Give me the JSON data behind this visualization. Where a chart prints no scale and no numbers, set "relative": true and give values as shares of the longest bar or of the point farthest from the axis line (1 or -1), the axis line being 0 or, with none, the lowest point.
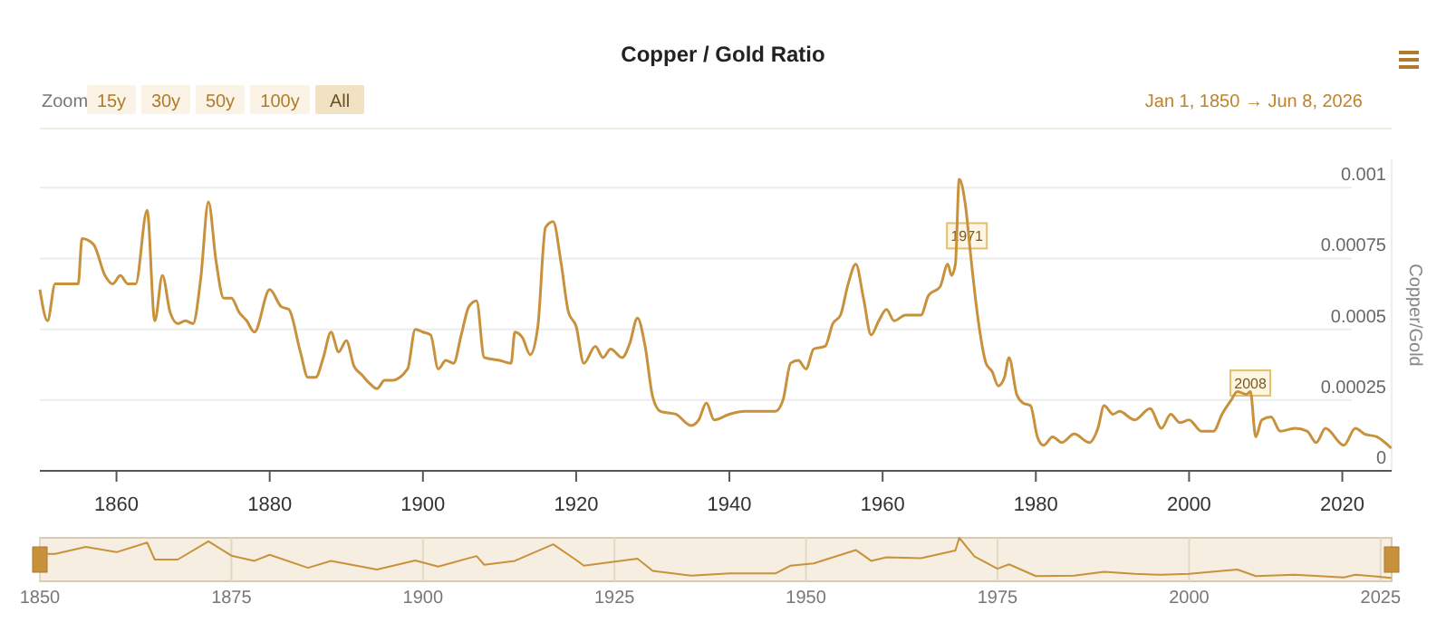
{
  "chart_data": [
    {
      "type": "line",
      "title": "Copper / Gold Ratio",
      "ylabel": "Copper/Gold",
      "color": "#c8913c",
      "grid": "y",
      "xlim": [
        1850,
        2026.44
      ],
      "xticks": [
        1860,
        1880,
        1900,
        1920,
        1940,
        1960,
        1980,
        2000,
        2020
      ],
      "ylim": [
        0,
        0.0011
      ],
      "yticks": [
        0,
        0.00025,
        0.0005,
        0.00075,
        0.001
      ],
      "x": [
        1850,
        1851,
        1852,
        1853.5,
        1855,
        1855.5,
        1857,
        1858.5,
        1859.5,
        1860.5,
        1861.5,
        1862.5,
        1864,
        1865,
        1866,
        1867,
        1868,
        1869,
        1870,
        1871,
        1872,
        1873,
        1874,
        1875,
        1876,
        1877,
        1878,
        1880,
        1881.5,
        1882.5,
        1884,
        1885,
        1886,
        1887,
        1888,
        1889,
        1890,
        1891,
        1892,
        1893,
        1894,
        1895,
        1896,
        1898,
        1899,
        1900,
        1901,
        1902,
        1903,
        1904,
        1905,
        1906,
        1907,
        1908,
        1910,
        1911.5,
        1912,
        1913,
        1914,
        1915,
        1916,
        1917,
        1918,
        1919,
        1920,
        1921,
        1922.5,
        1923.5,
        1924.5,
        1926,
        1927,
        1928,
        1929,
        1930,
        1931,
        1933,
        1935,
        1936,
        1937,
        1938,
        1940,
        1942,
        1946,
        1947,
        1948,
        1949,
        1950,
        1951,
        1952.5,
        1953.5,
        1954.5,
        1955.5,
        1956.5,
        1957.5,
        1958.5,
        1959.5,
        1960.5,
        1961.5,
        1963,
        1965,
        1966,
        1967.5,
        1968.5,
        1969,
        1969.5,
        1970,
        1970.8,
        1971.5,
        1972.2,
        1972.7,
        1973.5,
        1974.3,
        1975.1,
        1975.9,
        1976.5,
        1977.5,
        1978.3,
        1979.3,
        1980.2,
        1981,
        1982.2,
        1983.4,
        1985,
        1987,
        1988.1,
        1988.9,
        1990.1,
        1990.9,
        1992.9,
        1994.9,
        1996.4,
        1997.6,
        1998.8,
        2000,
        2001.6,
        2003.2,
        2004.3,
        2005.5,
        2006.3,
        2007.5,
        2008,
        2008.7,
        2009.5,
        2010.7,
        2011.9,
        2013.8,
        2015.4,
        2016.6,
        2017.8,
        2020.2,
        2021.7,
        2022.9,
        2024.5,
        2026.4
      ],
      "values": [
        0.00064,
        0.00053,
        0.00066,
        0.00066,
        0.00066,
        0.00082,
        0.0008,
        0.00069,
        0.00066,
        0.00069,
        0.00066,
        0.00066,
        0.00092,
        0.00053,
        0.00069,
        0.00056,
        0.00052,
        0.00053,
        0.00052,
        0.00068,
        0.00095,
        0.00074,
        0.00061,
        0.00061,
        0.00056,
        0.00053,
        0.00049,
        0.00064,
        0.00058,
        0.00057,
        0.00042,
        0.00033,
        0.00033,
        0.0004,
        0.00049,
        0.00042,
        0.00046,
        0.00037,
        0.00034,
        0.00031,
        0.00029,
        0.00032,
        0.00032,
        0.00036,
        0.0005,
        0.00049,
        0.00048,
        0.00036,
        0.00039,
        0.00038,
        0.00048,
        0.00058,
        0.0006,
        0.0004,
        0.00039,
        0.00038,
        0.00049,
        0.00047,
        0.00041,
        0.00051,
        0.00086,
        0.00088,
        0.00074,
        0.00056,
        0.00051,
        0.00038,
        0.00044,
        0.0004,
        0.00043,
        0.0004,
        0.00045,
        0.00054,
        0.00044,
        0.00026,
        0.00021,
        0.0002,
        0.00016,
        0.00018,
        0.00024,
        0.00018,
        0.0002,
        0.00021,
        0.00021,
        0.00025,
        0.00038,
        0.00039,
        0.00036,
        0.00043,
        0.00044,
        0.00052,
        0.00055,
        0.00066,
        0.00073,
        0.00061,
        0.00048,
        0.00053,
        0.00057,
        0.00053,
        0.00055,
        0.00055,
        0.00062,
        0.00065,
        0.00073,
        0.00069,
        0.00073,
        0.00103,
        0.00094,
        0.00076,
        0.00059,
        0.00049,
        0.00038,
        0.00035,
        0.0003,
        0.00033,
        0.0004,
        0.00027,
        0.00024,
        0.00023,
        0.00012,
        9e-05,
        0.00012,
        0.0001,
        0.00013,
        0.0001,
        0.00015,
        0.00023,
        0.0002,
        0.00021,
        0.00018,
        0.00022,
        0.00015,
        0.0002,
        0.00017,
        0.00018,
        0.00014,
        0.00014,
        0.0002,
        0.00025,
        0.00028,
        0.00027,
        0.00028,
        0.00012,
        0.00018,
        0.00019,
        0.00014,
        0.00015,
        0.00014,
        0.0001,
        0.00015,
        9e-05,
        0.00015,
        0.00013,
        0.00012,
        8e-05
      ],
      "annotations": [
        {
          "text": "1971",
          "x": 1971,
          "y": 0.00083
        },
        {
          "text": "2008",
          "x": 2008,
          "y": 0.00031
        },
        "Zoom",
        "15y",
        "30y",
        "50y",
        "100y",
        "All",
        "Jan 1, 1850 → Jun 8, 2026"
      ]
    },
    {
      "type": "line",
      "relative": true,
      "color": "#c8913c",
      "grid": "x",
      "tick_labels": "x",
      "xlim": [
        1850,
        2026.44
      ],
      "xticks": [
        1850,
        1875,
        1900,
        1925,
        1950,
        1975,
        2000,
        2025
      ],
      "x": [
        1850,
        1852,
        1856,
        1860,
        1864,
        1865,
        1868,
        1872,
        1875,
        1878,
        1880,
        1885,
        1888,
        1894,
        1899,
        1902,
        1907,
        1908,
        1912,
        1917,
        1920,
        1921,
        1928,
        1930,
        1935,
        1940,
        1946,
        1948,
        1951,
        1956.5,
        1958.5,
        1960.5,
        1965,
        1969.5,
        1970,
        1972,
        1975,
        1976.5,
        1980,
        1985,
        1988.9,
        1992.9,
        1996.4,
        2000,
        2006.3,
        2008.7,
        2013.8,
        2020.2,
        2021.7,
        2026.4
      ],
      "values": [
        0.63,
        0.63,
        0.79,
        0.67,
        0.89,
        0.5,
        0.5,
        0.92,
        0.59,
        0.47,
        0.61,
        0.31,
        0.47,
        0.27,
        0.48,
        0.34,
        0.58,
        0.38,
        0.47,
        0.85,
        0.49,
        0.36,
        0.52,
        0.24,
        0.13,
        0.18,
        0.18,
        0.36,
        0.41,
        0.72,
        0.47,
        0.55,
        0.53,
        0.71,
        1,
        0.57,
        0.29,
        0.39,
        0.12,
        0.13,
        0.22,
        0.17,
        0.15,
        0.17,
        0.27,
        0.12,
        0.15,
        0.09,
        0.15,
        0.08
      ]
    }
  ]
}
